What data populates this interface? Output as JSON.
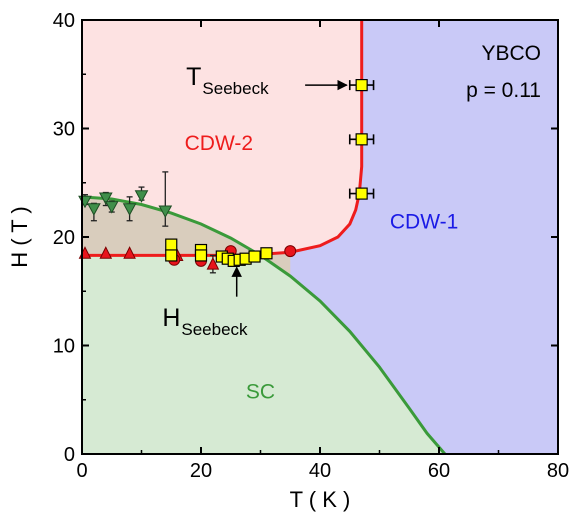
{
  "chart_data": {
    "type": "scatter",
    "xlabel": "T ( K )",
    "ylabel": "H ( T )",
    "xlim": [
      0,
      80
    ],
    "ylim": [
      0,
      40
    ],
    "xticks": [
      0,
      20,
      40,
      60,
      80
    ],
    "yticks": [
      0,
      10,
      20,
      30,
      40
    ],
    "grid": false,
    "info": {
      "line1": "YBCO",
      "line2": "p = 0.11"
    },
    "colors": {
      "cdw2_fill": "#fde2e2",
      "cdw1_fill": "#c9c9f7",
      "sc_fill": "#d6ead3",
      "overlap_fill": "#d9cdbd",
      "sc_line": "#3a9a3a",
      "cdw_line": "#ee1c1c",
      "cdw2_text": "#ee1c1c",
      "cdw1_text": "#1a1ae6",
      "sc_text": "#3a9a3a",
      "green_marker": "#3f8f4a",
      "red_marker": "#e8141c",
      "yellow_marker": "#ffff00"
    },
    "regions": [
      {
        "name": "CDW-2",
        "label_at": [
          23,
          28
        ]
      },
      {
        "name": "CDW-1",
        "label_at": [
          57.5,
          20.8
        ]
      },
      {
        "name": "SC",
        "label_at": [
          30,
          5.1
        ]
      }
    ],
    "sc_boundary": {
      "T": [
        0,
        5,
        10,
        15,
        20,
        25,
        30,
        35,
        40,
        45,
        50,
        55,
        58,
        61
      ],
      "H": [
        23.7,
        23.5,
        23.0,
        22.2,
        21.2,
        19.9,
        18.3,
        16.4,
        14.1,
        11.3,
        8.0,
        4.2,
        1.9,
        0
      ]
    },
    "cdw_boundary": {
      "T": [
        0,
        15,
        25,
        30,
        35,
        40,
        43,
        45,
        46,
        46.6,
        47,
        47,
        47
      ],
      "H": [
        18.3,
        18.3,
        18.3,
        18.4,
        18.6,
        19.2,
        20.0,
        21.2,
        22.5,
        24.0,
        26.5,
        33,
        40
      ]
    },
    "series": [
      {
        "marker": "triangle-down",
        "T": [
          0.5,
          2,
          4,
          5,
          8,
          10,
          14
        ],
        "H": [
          23.3,
          22.6,
          23.6,
          22.8,
          22.6,
          23.8,
          22.4
        ],
        "yerr_low": [
          23.0,
          21.5,
          22.9,
          22.3,
          21.5,
          23.4,
          21.0
        ],
        "yerr_high": [
          23.9,
          23.1,
          24.1,
          23.3,
          23.7,
          24.6,
          26.0
        ]
      },
      {
        "marker": "triangle-up",
        "T": [
          0.5,
          4,
          8,
          16,
          22
        ],
        "H": [
          18.5,
          18.5,
          18.5,
          18.3,
          17.5
        ],
        "yerr_low": [
          18.5,
          18.5,
          18.5,
          18.3,
          16.7
        ],
        "yerr_high": [
          18.5,
          18.5,
          18.5,
          18.3,
          18.3
        ]
      },
      {
        "marker": "circle",
        "T": [
          15.5,
          20,
          25,
          35
        ],
        "H": [
          17.9,
          17.8,
          18.7,
          18.7
        ]
      },
      {
        "marker": "square",
        "T": [
          15,
          15,
          20,
          20,
          23.5,
          24.5,
          25.5,
          26.5,
          27.5,
          29,
          31
        ],
        "H": [
          19.3,
          18.3,
          18.8,
          18.3,
          18.2,
          18.0,
          17.8,
          17.9,
          18.0,
          18.2,
          18.5
        ]
      },
      {
        "marker": "square",
        "T": [
          47,
          47,
          47
        ],
        "H": [
          34,
          29,
          24
        ],
        "xerr": [
          2,
          2,
          2
        ]
      }
    ],
    "annotations": [
      {
        "main": "T",
        "sub": "Seebeck",
        "text_at": [
          17.5,
          34
        ],
        "arrow_from": [
          37.5,
          34
        ],
        "arrow_to": [
          44.5,
          34
        ]
      },
      {
        "main": "H",
        "sub": "Seebeck",
        "text_at": [
          13.5,
          11.8
        ],
        "arrow_from": [
          26,
          14.5
        ],
        "arrow_to": [
          26,
          17.2
        ]
      }
    ]
  }
}
